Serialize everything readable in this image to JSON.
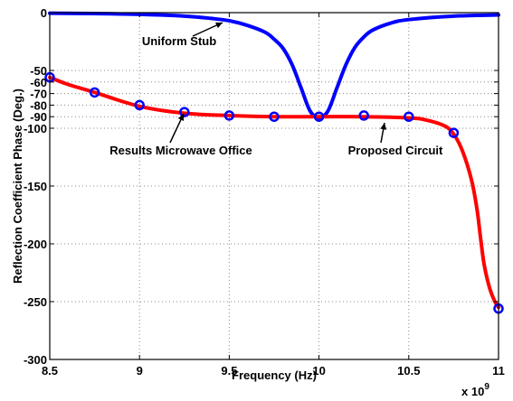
{
  "chart_data": {
    "type": "line",
    "title": "",
    "xlabel": "Frequency (Hz)",
    "ylabel": "Reflection Coefficient Phase (Deg.)",
    "x_multiplier_label": "x 10",
    "x_multiplier_exp": "9",
    "xlim": [
      8.5,
      11
    ],
    "ylim": [
      -300,
      0
    ],
    "xticks": [
      8.5,
      9,
      9.5,
      10,
      10.5,
      11
    ],
    "xtick_labels": [
      "8.5",
      "9",
      "9.5",
      "10",
      "10.5",
      "11"
    ],
    "yticks": [
      0,
      -50,
      -60,
      -70,
      -80,
      -90,
      -100,
      -150,
      -200,
      -250,
      -300
    ],
    "ytick_labels": [
      "0",
      "-50",
      "-60",
      "-70",
      "-80",
      "-90",
      "-100",
      "-150",
      "-200",
      "-250",
      "-300"
    ],
    "grid": true,
    "series": [
      {
        "name": "Uniform Stub",
        "color": "#0000ff",
        "style": "line",
        "x": [
          8.5,
          8.75,
          9.0,
          9.25,
          9.4,
          9.5,
          9.6,
          9.7,
          9.75,
          9.8,
          9.85,
          9.9,
          9.95,
          10.0,
          10.05,
          10.1,
          10.15,
          10.2,
          10.25,
          10.3,
          10.4,
          10.5,
          10.75,
          11.0
        ],
        "y": [
          -0.5,
          -0.8,
          -1.5,
          -3,
          -5,
          -7,
          -11,
          -17,
          -23,
          -31,
          -45,
          -65,
          -85,
          -91,
          -85,
          -65,
          -45,
          -30,
          -21,
          -15,
          -9,
          -6,
          -3,
          -2
        ]
      },
      {
        "name": "Proposed Circuit",
        "color": "#ff0000",
        "style": "line",
        "x": [
          8.5,
          8.6,
          8.75,
          9.0,
          9.25,
          9.5,
          9.75,
          10.0,
          10.25,
          10.5,
          10.6,
          10.7,
          10.75,
          10.8,
          10.85,
          10.88,
          10.9,
          10.92,
          10.95,
          10.98,
          11.0
        ],
        "y": [
          -56,
          -62,
          -69,
          -81,
          -87,
          -89,
          -90,
          -90,
          -90,
          -91,
          -93,
          -98,
          -105,
          -120,
          -145,
          -170,
          -195,
          -218,
          -238,
          -250,
          -255
        ]
      },
      {
        "name": "Results Microwave Office",
        "color": "#0000ff",
        "style": "markers",
        "x": [
          8.5,
          8.75,
          9.0,
          9.25,
          9.5,
          9.75,
          10.0,
          10.25,
          10.5,
          10.75,
          11.0
        ],
        "y": [
          -56,
          -69,
          -80,
          -86,
          -89,
          -90,
          -90,
          -89,
          -90,
          -104,
          -256
        ]
      }
    ],
    "annotations": [
      {
        "text": "Uniform Stub",
        "tx": 9.48,
        "ty": -4
      },
      {
        "text": "Results Microwave Office",
        "tx": 9.25,
        "ty": -87
      },
      {
        "text": "Proposed Circuit",
        "tx": 10.35,
        "ty": -91
      }
    ]
  }
}
